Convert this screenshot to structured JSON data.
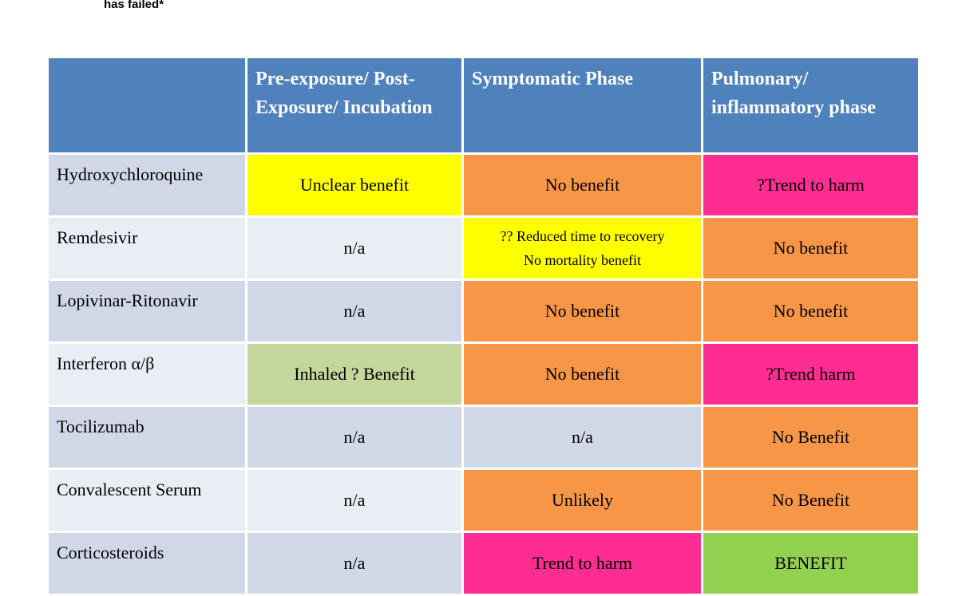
{
  "header": {
    "text": "has failed*"
  },
  "table": {
    "columns": [
      "Pre-exposure/ Post-Exposure/ Incubation",
      "Symptomatic Phase",
      "Pulmonary/ inflammatory phase"
    ],
    "rows": [
      {
        "label": "Hydroxychloroquine",
        "cells": [
          "Unclear benefit",
          "No benefit",
          "?Trend to harm"
        ]
      },
      {
        "label": "Remdesivir",
        "cells": [
          "n/a",
          [
            "?? Reduced time to recovery",
            "No mortality benefit"
          ],
          "No benefit"
        ]
      },
      {
        "label": "Lopivinar-Ritonavir",
        "cells": [
          "n/a",
          "No benefit",
          "No benefit"
        ]
      },
      {
        "label": "Interferon α/β",
        "cells": [
          "Inhaled ? Benefit",
          "No benefit",
          "?Trend harm"
        ]
      },
      {
        "label": "Tocilizumab",
        "cells": [
          "n/a",
          "n/a",
          "No Benefit"
        ]
      },
      {
        "label": "Convalescent Serum",
        "cells": [
          "n/a",
          "Unlikely",
          "No Benefit"
        ]
      },
      {
        "label": "Corticosteroids",
        "cells": [
          "n/a",
          "Trend to harm",
          "BENEFIT"
        ]
      }
    ]
  }
}
